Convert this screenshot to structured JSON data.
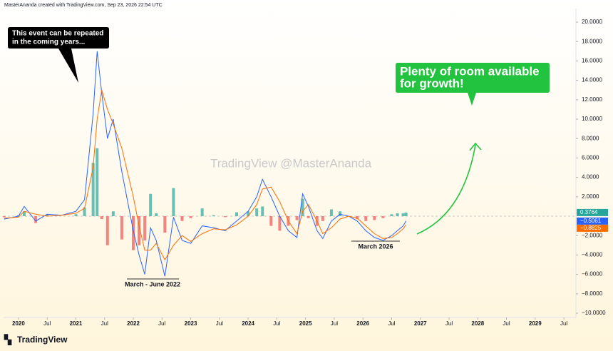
{
  "header": "MasterAnanda created with TradingView.com, Sep 23, 2026 22:54 UTC",
  "watermark": "TradingView @MasterAnanda",
  "logo": "TradingView",
  "chart_data": {
    "type": "line",
    "x": [
      2019.75,
      2020.0,
      2020.1,
      2020.3,
      2020.5,
      2020.75,
      2021.0,
      2021.15,
      2021.3,
      2021.37,
      2021.45,
      2021.55,
      2021.65,
      2021.8,
      2022.0,
      2022.1,
      2022.2,
      2022.3,
      2022.4,
      2022.55,
      2022.7,
      2022.85,
      2023.0,
      2023.2,
      2023.4,
      2023.6,
      2023.8,
      2024.0,
      2024.15,
      2024.25,
      2024.4,
      2024.55,
      2024.7,
      2024.85,
      2024.95,
      2025.05,
      2025.2,
      2025.3,
      2025.45,
      2025.6,
      2025.75,
      2025.9,
      2026.05,
      2026.2,
      2026.35,
      2026.5,
      2026.6,
      2026.7,
      2026.75
    ],
    "series": [
      {
        "color": "#2962ff",
        "price_label": "−0.5061",
        "values": [
          -0.3,
          0,
          1.0,
          -0.5,
          0.2,
          0.1,
          0.5,
          1.7,
          10.5,
          17,
          12.7,
          8,
          10,
          4.6,
          -1.5,
          -4,
          -6,
          -1.2,
          -2.5,
          -6.2,
          -0.1,
          -2.5,
          -2.8,
          -1.0,
          -1.2,
          -1.5,
          -0.5,
          0.5,
          2.0,
          3.8,
          2.0,
          0,
          -1.5,
          -2.2,
          2.3,
          1.0,
          -1.5,
          -2.3,
          -0.5,
          0.2,
          0,
          -0.5,
          -1.5,
          -2.2,
          -2.5,
          -2.0,
          -1.5,
          -1.0,
          -0.5061
        ]
      },
      {
        "color": "#ff6d00",
        "price_label": "−0.8825",
        "values": [
          -0.2,
          -0.1,
          0.5,
          0.2,
          0,
          0.1,
          0.3,
          0.8,
          5,
          10,
          13,
          11,
          9.5,
          7,
          2,
          -1,
          -3.5,
          -3.5,
          -2.8,
          -4.5,
          -3,
          -2,
          -2.6,
          -1.8,
          -1.3,
          -1.4,
          -0.9,
          0,
          1.2,
          2.8,
          3,
          1.5,
          -0.5,
          -1.8,
          0.5,
          1.2,
          -0.5,
          -1.8,
          -1.2,
          -0.3,
          0,
          -0.2,
          -1.0,
          -1.8,
          -2.3,
          -2.2,
          -1.8,
          -1.3,
          -0.8825
        ]
      }
    ],
    "histogram": {
      "color_up": "#26a69a",
      "color_down": "#ef5350",
      "price_label": "0.3764",
      "values": [
        -0.1,
        0.1,
        0.5,
        -0.7,
        0.2,
        0,
        0.2,
        0.9,
        5.5,
        7,
        -0.3,
        -3,
        0.5,
        -2.4,
        -3.5,
        -3,
        -2.5,
        2.3,
        0.3,
        -1.7,
        2.9,
        -0.5,
        -0.2,
        0.8,
        0.1,
        -0.1,
        0.4,
        0.5,
        0.8,
        1.0,
        -1.0,
        -1.5,
        -1.0,
        -0.4,
        1.8,
        -0.2,
        -1.0,
        -0.5,
        0.7,
        0.5,
        0,
        -0.3,
        -0.5,
        -0.4,
        -0.2,
        0.2,
        0.3,
        0.3,
        0.3764
      ]
    },
    "xlim": [
      2019.74,
      2029.71
    ],
    "xticks": [
      2020,
      {
        "value": 2020.5,
        "label": "Jul"
      },
      2021,
      {
        "value": 2021.5,
        "label": "Jul"
      },
      2022,
      {
        "value": 2022.5,
        "label": "Jul"
      },
      2023,
      {
        "value": 2023.5,
        "label": "Jul"
      },
      2024,
      {
        "value": 2024.5,
        "label": "Jul"
      },
      2025,
      {
        "value": 2025.5,
        "label": "Jul"
      },
      2026,
      {
        "value": 2026.5,
        "label": "Jul"
      },
      2027,
      {
        "value": 2027.5,
        "label": "Jul"
      },
      2028,
      {
        "value": 2028.5,
        "label": "Jul"
      },
      2029,
      {
        "value": 2029.5,
        "label": "Jul"
      }
    ],
    "ylim": [
      -10.44,
      21.4
    ],
    "yticks": [
      {
        "value": 20,
        "label": "20.0000"
      },
      {
        "value": 18,
        "label": "18.0000"
      },
      {
        "value": 16,
        "label": "16.0000"
      },
      {
        "value": 14,
        "label": "14.0000"
      },
      {
        "value": 12,
        "label": "12.0000"
      },
      {
        "value": 10,
        "label": "10.0000"
      },
      {
        "value": 8,
        "label": "8.0000"
      },
      {
        "value": 6,
        "label": "6.0000"
      },
      {
        "value": 4,
        "label": "4.0000"
      },
      {
        "value": 2,
        "label": "2.0000"
      },
      {
        "value": -2,
        "label": "−2.0000"
      },
      {
        "value": -4,
        "label": "−4.0000"
      },
      {
        "value": -6,
        "label": "−6.0000"
      },
      {
        "value": -8,
        "label": "−8.0000"
      },
      {
        "value": -10,
        "label": "−10.0000"
      }
    ],
    "grid": false,
    "annotations": [
      {
        "lines": [
          "This event can be repeated",
          "in the coming years..."
        ]
      },
      {
        "lines": [
          "Plenty of room available",
          "for growth!"
        ]
      },
      {
        "lines": [
          "March - June 2022"
        ]
      },
      {
        "lines": [
          "March 2026"
        ]
      }
    ]
  }
}
